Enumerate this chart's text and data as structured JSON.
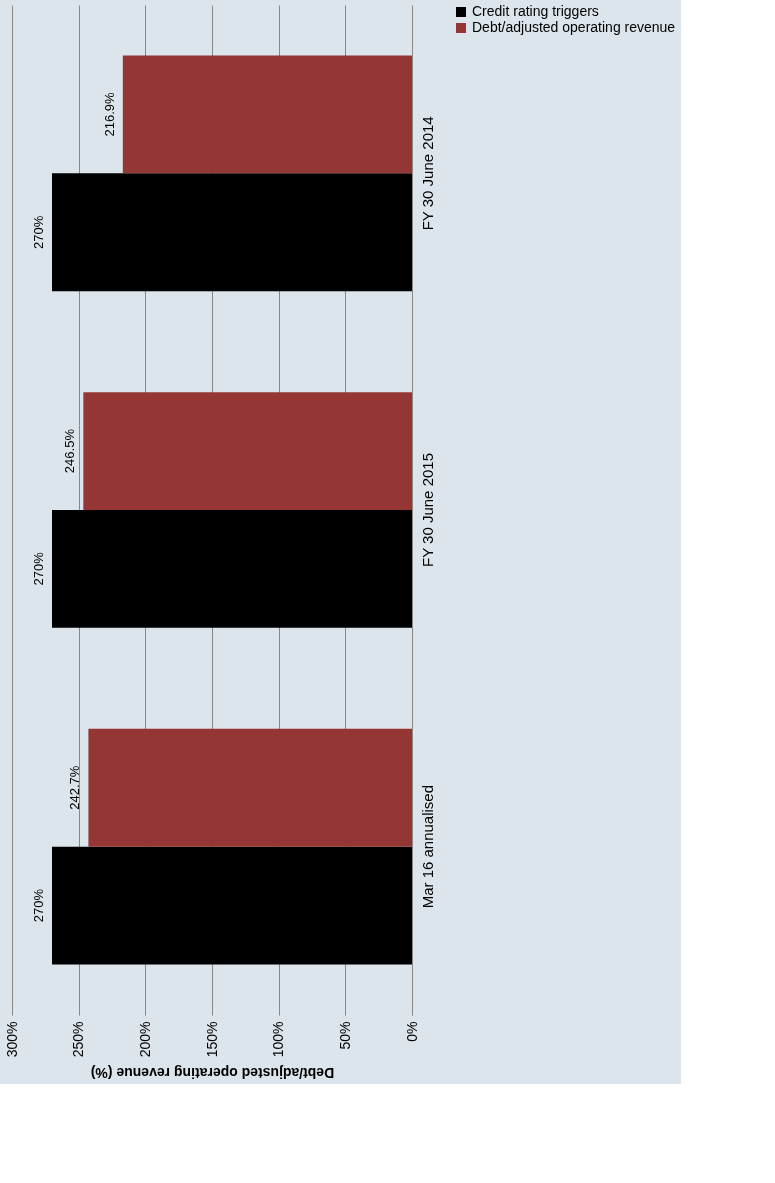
{
  "chart_data": {
    "type": "bar",
    "orientation": "horizontal",
    "xlabel": "Debt/adjusted operating revenue (%)",
    "categories": [
      "FY 30 June 2014",
      "FY 30 June 2015",
      "Mar 16 annualised"
    ],
    "series": [
      {
        "name": "Credit rating triggers",
        "color": "#000000",
        "values": [
          270,
          270,
          270
        ],
        "value_labels": [
          "270%",
          "270%",
          "270%"
        ]
      },
      {
        "name": "Debt/adjusted operating revenue",
        "color": "#943634",
        "values": [
          216.9,
          246.5,
          242.7
        ],
        "value_labels": [
          "216.9%",
          "246.5%",
          "242.7%"
        ]
      }
    ],
    "xlim": [
      300,
      0
    ],
    "xticks": [
      {
        "value": 300,
        "label": "300%"
      },
      {
        "value": 250,
        "label": "250%"
      },
      {
        "value": 200,
        "label": "200%"
      },
      {
        "value": 150,
        "label": "150%"
      },
      {
        "value": 100,
        "label": "100%"
      },
      {
        "value": 50,
        "label": "50%"
      },
      {
        "value": 0,
        "label": "0%"
      }
    ],
    "grid": "x",
    "legend": "right"
  }
}
